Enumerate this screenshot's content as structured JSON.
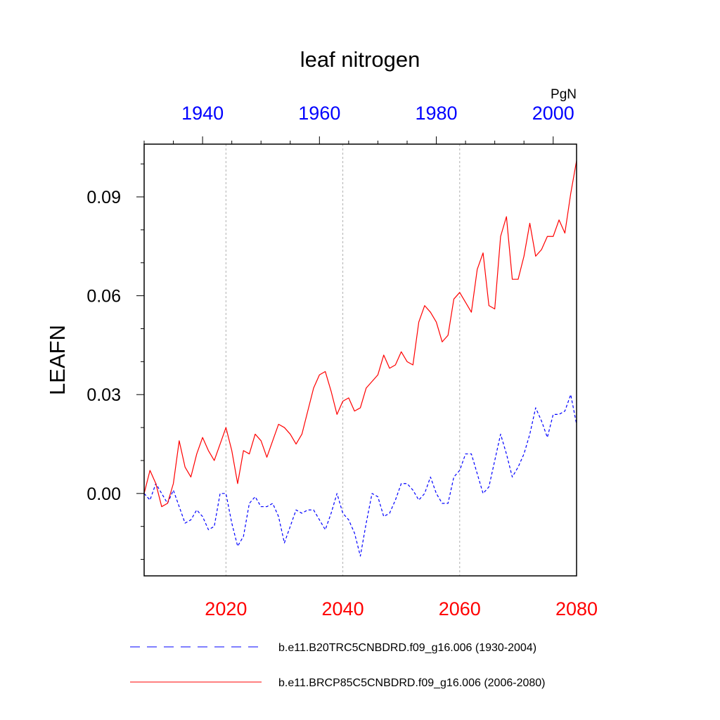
{
  "chart_data": {
    "type": "line",
    "title": "leaf nitrogen",
    "ylabel": "LEAFN",
    "units": "PgN",
    "ylim": [
      -0.025,
      0.106
    ],
    "yticks": [
      0.0,
      0.03,
      0.06,
      0.09
    ],
    "ytick_labels": [
      "0.00",
      "0.03",
      "0.06",
      "0.09"
    ],
    "x_bottom": {
      "range": [
        2006,
        2080
      ],
      "ticks": [
        2020,
        2040,
        2060,
        2080
      ],
      "tick_labels": [
        "2020",
        "2040",
        "2060",
        "2080"
      ],
      "color": "#ff0000"
    },
    "x_top": {
      "range": [
        1930,
        2004
      ],
      "ticks": [
        1940,
        1960,
        1980,
        2000
      ],
      "tick_labels": [
        "1940",
        "1960",
        "1980",
        "2000"
      ],
      "color": "#0000ff"
    },
    "grid_x": [
      2020,
      2040,
      2060
    ],
    "legend_position": "bottom",
    "series": [
      {
        "name": "b.e11.B20TRC5CNBDRD.f09_g16.006 (1930-2004)",
        "axis": "top",
        "color": "#0000ff",
        "dash": "dashed",
        "x_start": 1930,
        "values": [
          0.0,
          -0.002,
          0.003,
          0.0,
          -0.003,
          0.001,
          -0.004,
          -0.009,
          -0.008,
          -0.005,
          -0.007,
          -0.011,
          -0.01,
          0.0,
          0.0,
          -0.009,
          -0.016,
          -0.013,
          -0.003,
          -0.001,
          -0.004,
          -0.004,
          -0.003,
          -0.007,
          -0.015,
          -0.01,
          -0.005,
          -0.006,
          -0.005,
          -0.005,
          -0.008,
          -0.011,
          -0.006,
          0.0,
          -0.006,
          -0.008,
          -0.012,
          -0.019,
          -0.009,
          0.0,
          -0.001,
          -0.007,
          -0.006,
          -0.002,
          0.003,
          0.003,
          0.001,
          -0.002,
          0.0,
          0.005,
          0.0,
          -0.003,
          -0.003,
          0.005,
          0.007,
          0.012,
          0.012,
          0.006,
          0.0,
          0.002,
          0.01,
          0.018,
          0.012,
          0.005,
          0.008,
          0.012,
          0.018,
          0.026,
          0.022,
          0.017,
          0.024,
          0.024,
          0.025,
          0.03,
          0.021
        ]
      },
      {
        "name": "b.e11.BRCP85C5CNBDRD.f09_g16.006 (2006-2080)",
        "axis": "bottom",
        "color": "#ff0000",
        "dash": "solid",
        "x_start": 2006,
        "values": [
          0.0,
          0.007,
          0.003,
          -0.004,
          -0.003,
          0.003,
          0.016,
          0.008,
          0.005,
          0.012,
          0.017,
          0.013,
          0.01,
          0.015,
          0.02,
          0.013,
          0.003,
          0.013,
          0.012,
          0.018,
          0.016,
          0.011,
          0.016,
          0.021,
          0.02,
          0.018,
          0.015,
          0.018,
          0.025,
          0.032,
          0.036,
          0.037,
          0.031,
          0.024,
          0.028,
          0.029,
          0.025,
          0.026,
          0.032,
          0.034,
          0.036,
          0.042,
          0.038,
          0.039,
          0.043,
          0.04,
          0.039,
          0.052,
          0.057,
          0.055,
          0.052,
          0.046,
          0.048,
          0.059,
          0.061,
          0.058,
          0.055,
          0.068,
          0.073,
          0.057,
          0.056,
          0.078,
          0.084,
          0.065,
          0.065,
          0.072,
          0.082,
          0.072,
          0.074,
          0.078,
          0.078,
          0.083,
          0.079,
          0.091,
          0.101
        ]
      }
    ]
  }
}
